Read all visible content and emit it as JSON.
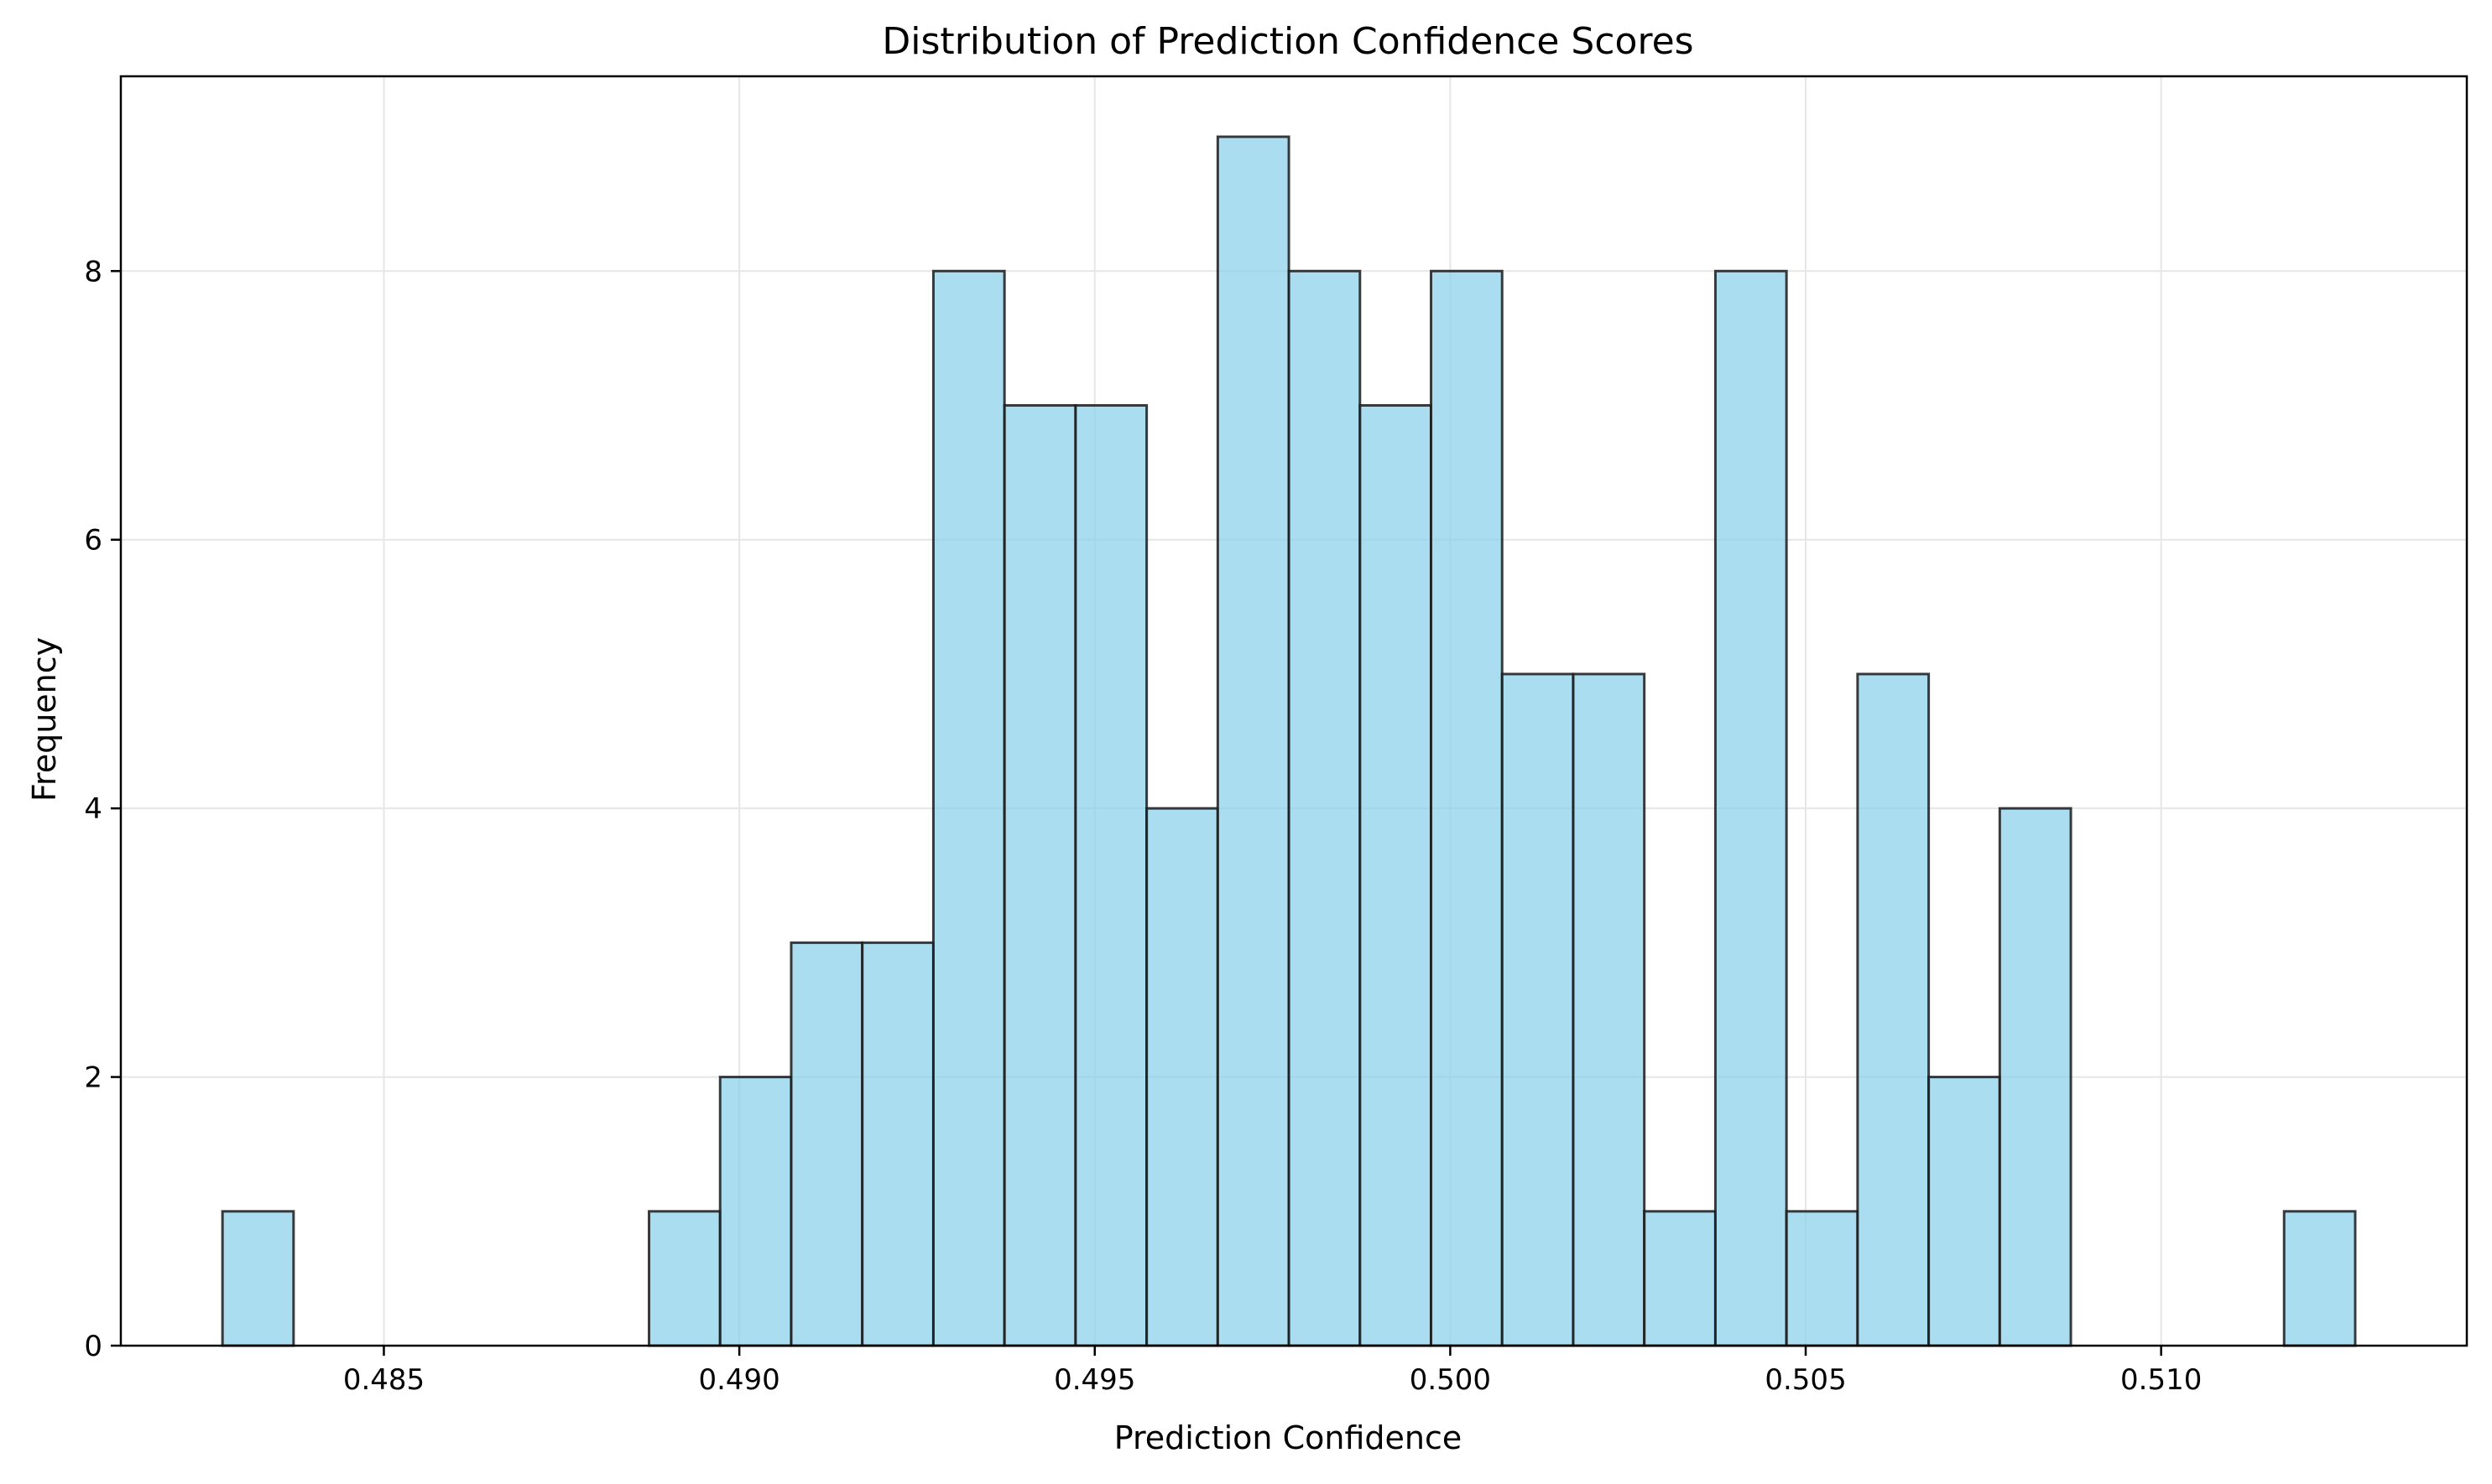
{
  "chart_data": {
    "type": "bar",
    "title": "Distribution of Prediction Confidence Scores",
    "xlabel": "Prediction Confidence",
    "ylabel": "Frequency",
    "x_ticks": [
      "0.485",
      "0.490",
      "0.495",
      "0.500",
      "0.505",
      "0.510"
    ],
    "x_tick_values": [
      0.485,
      0.49,
      0.495,
      0.5,
      0.505,
      0.51
    ],
    "y_ticks": [
      "0",
      "2",
      "4",
      "6",
      "8"
    ],
    "y_tick_values": [
      0,
      2,
      4,
      6,
      8
    ],
    "xlim": [
      0.4813,
      0.5143
    ],
    "ylim": [
      0,
      9.45
    ],
    "grid": true,
    "bin_edges": [
      0.48273,
      0.48373,
      0.48473,
      0.48573,
      0.48673,
      0.48773,
      0.48873,
      0.48973,
      0.49073,
      0.49173,
      0.49273,
      0.49373,
      0.49473,
      0.49573,
      0.49673,
      0.49773,
      0.49873,
      0.49973,
      0.50073,
      0.50173,
      0.50273,
      0.50373,
      0.50473,
      0.50573,
      0.50673,
      0.50773,
      0.50873,
      0.50973,
      0.51073,
      0.51173,
      0.51273
    ],
    "counts": [
      1,
      0,
      0,
      0,
      0,
      0,
      1,
      2,
      3,
      3,
      8,
      7,
      7,
      4,
      9,
      8,
      7,
      8,
      5,
      5,
      1,
      8,
      1,
      5,
      2,
      4,
      0,
      0,
      0,
      1
    ],
    "colors": {
      "bar_fill": "#87CEEB",
      "bar_edge": "#1a1a1a",
      "grid": "#e6e6e6"
    }
  }
}
